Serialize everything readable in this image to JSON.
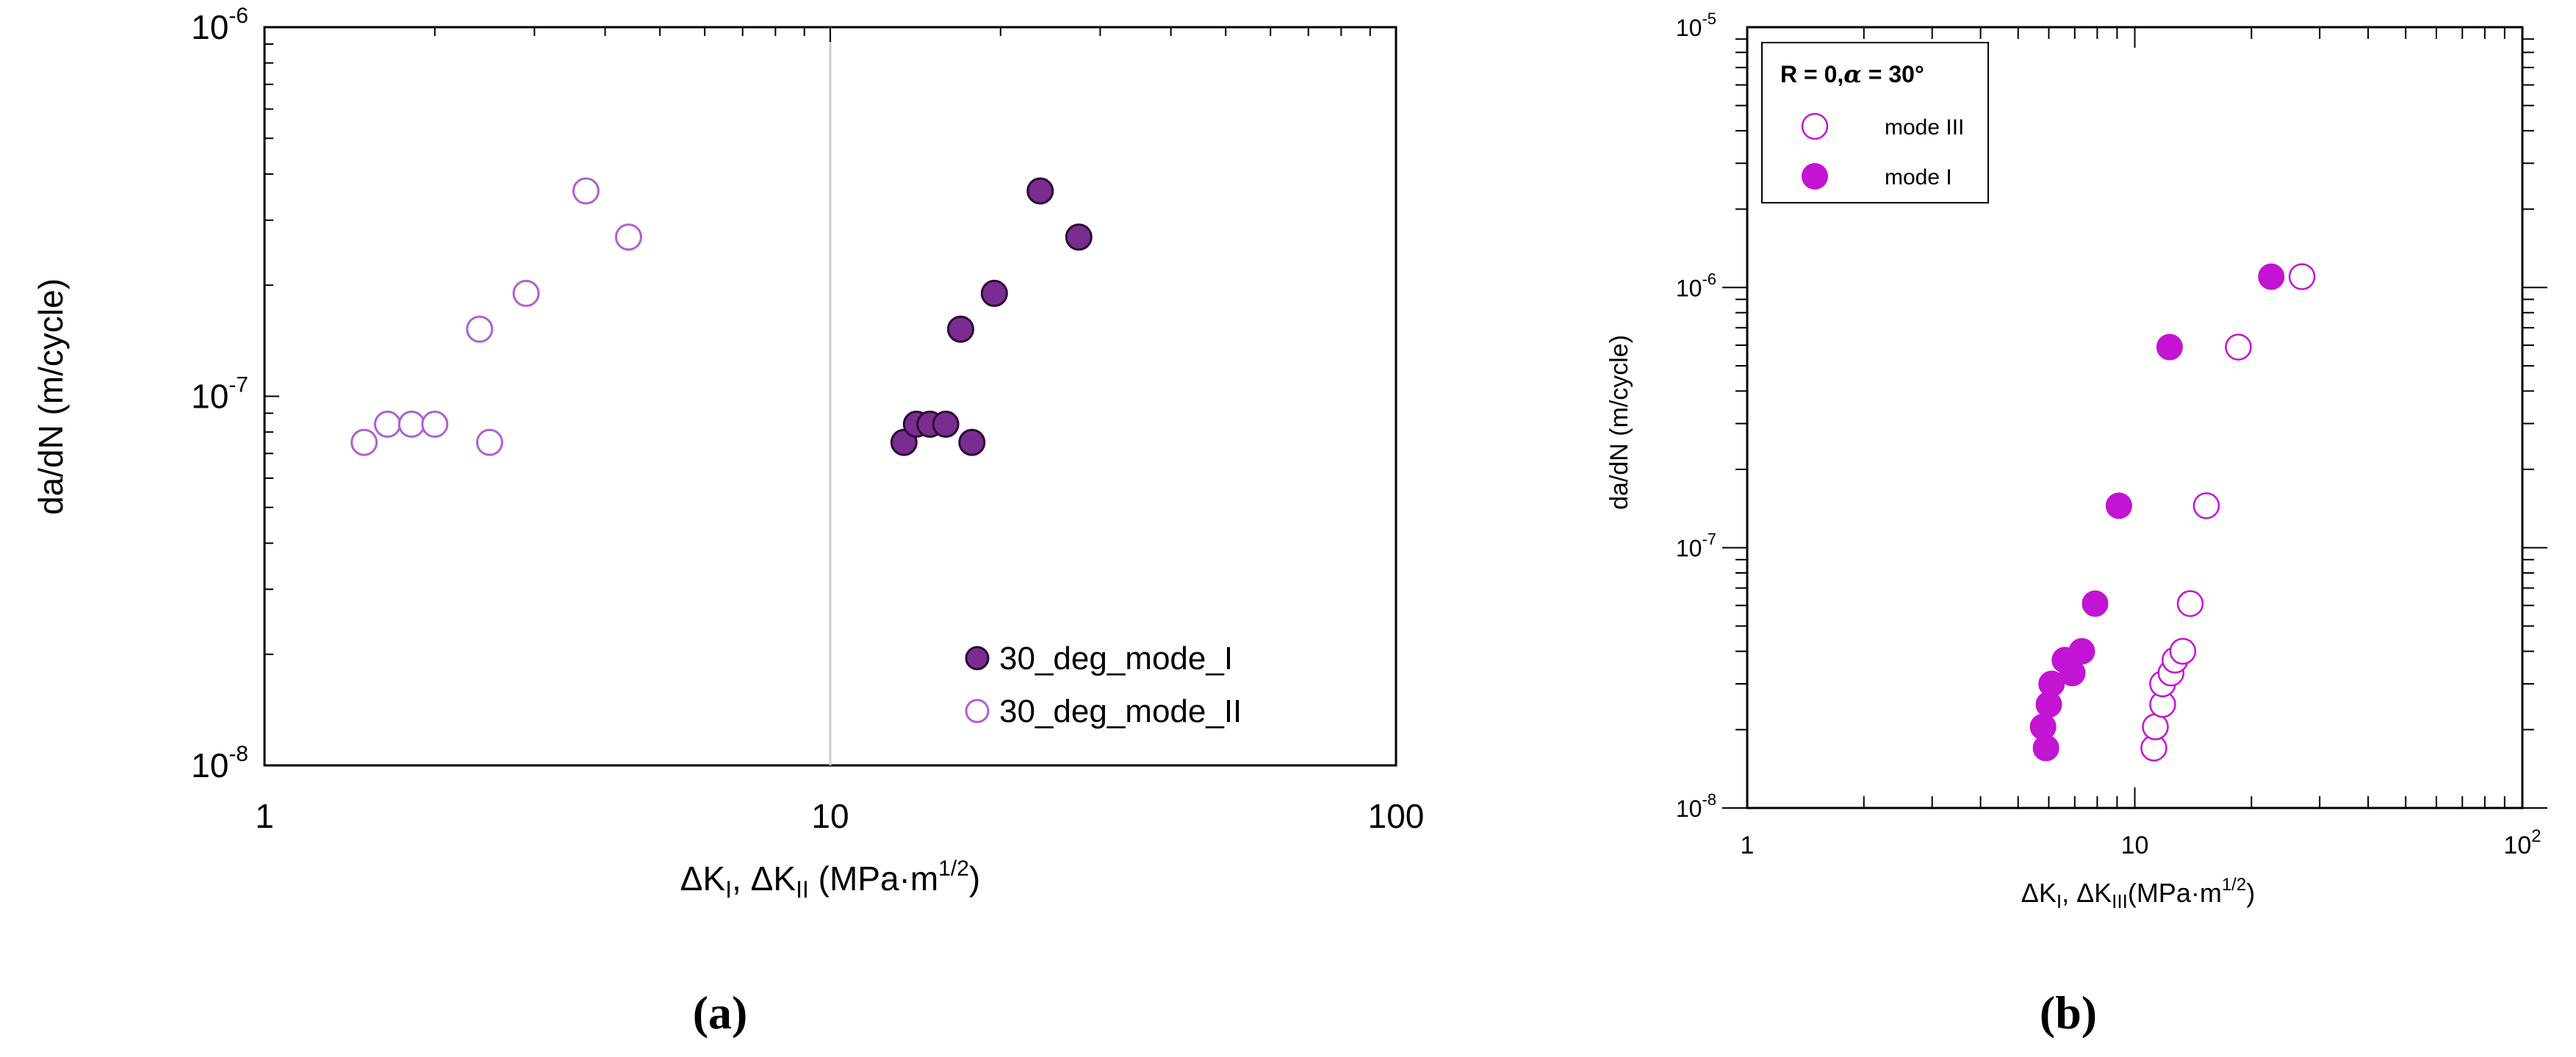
{
  "colors": {
    "a_mode_I_fill": "#7b2c91",
    "a_mode_II_stroke": "#b060d0",
    "b_purple": "#c313d3",
    "axis": "#000000",
    "gridline": "#cccccc"
  },
  "chart_data": [
    {
      "type": "scatter",
      "panel_label": "(a)",
      "xscale": "log",
      "yscale": "log",
      "xlim": [
        1,
        100
      ],
      "ylim": [
        1e-08,
        1e-06
      ],
      "xlabel": {
        "delta": "ΔK",
        "sub1": "I",
        "sep": ", ",
        "delta2": "ΔK",
        "sub2": "II",
        "units": " (MPa·m",
        "exp": "1/2",
        "close": ")"
      },
      "ylabel": "da/dN (m/cycle)",
      "x_ticks": [
        {
          "value": 1,
          "label": "1"
        },
        {
          "value": 10,
          "label": "10"
        },
        {
          "value": 100,
          "label": "100"
        }
      ],
      "y_ticks": [
        {
          "value": 1e-06,
          "base": "10",
          "exp": "-6"
        },
        {
          "value": 1e-07,
          "base": "10",
          "exp": "-7"
        },
        {
          "value": 1e-08,
          "base": "10",
          "exp": "-8"
        }
      ],
      "reference_line_x": 10,
      "legend_position": "bottom-right",
      "series": [
        {
          "name": "30_deg_mode_I",
          "marker": "filled",
          "x": [
            13.5,
            14.2,
            15.0,
            16.0,
            17.0,
            17.8,
            19.5,
            23.5,
            27.5
          ],
          "y": [
            7.5e-08,
            8.4e-08,
            8.4e-08,
            8.4e-08,
            1.52e-07,
            7.5e-08,
            1.9e-07,
            3.6e-07,
            2.7e-07
          ]
        },
        {
          "name": "30_deg_mode_II",
          "marker": "open",
          "x": [
            1.5,
            1.65,
            1.82,
            2.0,
            2.4,
            2.5,
            2.9,
            3.7,
            4.4
          ],
          "y": [
            7.5e-08,
            8.4e-08,
            8.4e-08,
            8.4e-08,
            1.52e-07,
            7.5e-08,
            1.9e-07,
            3.6e-07,
            2.7e-07
          ]
        }
      ]
    },
    {
      "type": "scatter",
      "panel_label": "(b)",
      "xscale": "log",
      "yscale": "log",
      "xlim": [
        1,
        100
      ],
      "ylim": [
        1e-08,
        1e-05
      ],
      "xlabel": {
        "delta": "ΔK",
        "sub1": "I",
        "sep": ", ",
        "delta2": "ΔK",
        "sub2": "III",
        "units": "(MPa·m",
        "exp": "1/2",
        "close": ")"
      },
      "ylabel": "da/dN  (m/cycle)",
      "x_ticks": [
        {
          "value": 1,
          "base": "1",
          "exp": ""
        },
        {
          "value": 10,
          "base": "10",
          "exp": ""
        },
        {
          "value": 100,
          "base": "10",
          "exp": "2"
        }
      ],
      "y_ticks": [
        {
          "value": 1e-05,
          "base": "10",
          "exp": "-5"
        },
        {
          "value": 1e-06,
          "base": "10",
          "exp": "-6"
        },
        {
          "value": 1e-07,
          "base": "10",
          "exp": "-7"
        },
        {
          "value": 1e-08,
          "base": "10",
          "exp": "-8"
        }
      ],
      "legend_title": "R = 0,",
      "legend_alpha": "α",
      "legend_title_rest": " = 30°",
      "legend_position": "top-left",
      "series": [
        {
          "name": "mode III",
          "marker": "open",
          "x": [
            11.2,
            11.3,
            11.8,
            11.8,
            12.4,
            12.7,
            13.3,
            13.9,
            15.3,
            18.5,
            27.0
          ],
          "y": [
            1.7e-08,
            2.05e-08,
            2.5e-08,
            3e-08,
            3.3e-08,
            3.7e-08,
            4e-08,
            6.1e-08,
            1.45e-07,
            5.9e-07,
            1.1e-06
          ]
        },
        {
          "name": "mode I",
          "marker": "filled",
          "x": [
            5.9,
            5.8,
            6.0,
            6.1,
            6.6,
            6.9,
            7.3,
            7.9,
            9.1,
            12.3,
            22.5
          ],
          "y": [
            1.7e-08,
            2.05e-08,
            2.5e-08,
            3e-08,
            3.7e-08,
            3.3e-08,
            4e-08,
            6.1e-08,
            1.45e-07,
            5.9e-07,
            1.1e-06
          ]
        }
      ]
    }
  ]
}
